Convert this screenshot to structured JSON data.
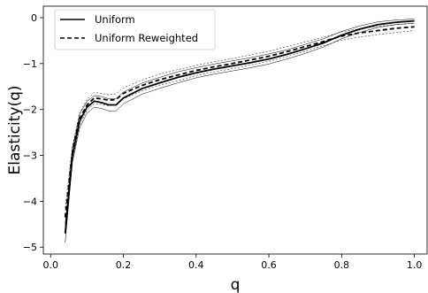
{
  "chart_data": {
    "type": "line",
    "xlabel": "q",
    "ylabel": "Elasticity(q)",
    "xlim": [
      -0.02,
      1.035
    ],
    "ylim": [
      -5.15,
      0.25
    ],
    "xticks": [
      0.0,
      0.2,
      0.4,
      0.6,
      0.8,
      1.0
    ],
    "xtick_labels": [
      "0.0",
      "0.2",
      "0.4",
      "0.6",
      "0.8",
      "1.0"
    ],
    "yticks": [
      0,
      -1,
      -2,
      -3,
      -4,
      -5
    ],
    "ytick_labels": [
      "0",
      "−1",
      "−2",
      "−3",
      "−4",
      "−5"
    ],
    "grid": false,
    "legend_position": "top-left",
    "x": [
      0.04,
      0.06,
      0.08,
      0.1,
      0.12,
      0.14,
      0.16,
      0.18,
      0.2,
      0.25,
      0.3,
      0.35,
      0.4,
      0.45,
      0.5,
      0.55,
      0.6,
      0.65,
      0.7,
      0.75,
      0.8,
      0.85,
      0.9,
      0.95,
      1.0
    ],
    "series": [
      {
        "name": "Uniform",
        "style": "solid",
        "values": [
          -4.7,
          -3.0,
          -2.25,
          -1.95,
          -1.82,
          -1.85,
          -1.9,
          -1.9,
          -1.75,
          -1.55,
          -1.42,
          -1.3,
          -1.2,
          -1.12,
          -1.05,
          -0.98,
          -0.9,
          -0.8,
          -0.68,
          -0.55,
          -0.38,
          -0.25,
          -0.15,
          -0.1,
          -0.07
        ],
        "band_upper": [
          -4.5,
          -2.85,
          -2.1,
          -1.82,
          -1.7,
          -1.72,
          -1.77,
          -1.77,
          -1.62,
          -1.43,
          -1.3,
          -1.18,
          -1.09,
          -1.01,
          -0.94,
          -0.87,
          -0.79,
          -0.7,
          -0.58,
          -0.46,
          -0.3,
          -0.18,
          -0.09,
          -0.05,
          -0.03
        ],
        "band_lower": [
          -4.9,
          -3.15,
          -2.4,
          -2.08,
          -1.95,
          -1.98,
          -2.03,
          -2.03,
          -1.88,
          -1.67,
          -1.54,
          -1.42,
          -1.31,
          -1.23,
          -1.16,
          -1.09,
          -1.01,
          -0.9,
          -0.78,
          -0.64,
          -0.46,
          -0.32,
          -0.21,
          -0.15,
          -0.12
        ]
      },
      {
        "name": "Uniform Reweighted",
        "style": "dashed",
        "values": [
          -4.35,
          -2.95,
          -2.2,
          -1.9,
          -1.75,
          -1.77,
          -1.8,
          -1.78,
          -1.65,
          -1.48,
          -1.35,
          -1.25,
          -1.15,
          -1.07,
          -1.0,
          -0.92,
          -0.84,
          -0.74,
          -0.63,
          -0.52,
          -0.4,
          -0.33,
          -0.28,
          -0.23,
          -0.2
        ],
        "band_upper": [
          -4.15,
          -2.8,
          -2.07,
          -1.78,
          -1.63,
          -1.65,
          -1.68,
          -1.66,
          -1.53,
          -1.36,
          -1.23,
          -1.13,
          -1.04,
          -0.96,
          -0.89,
          -0.81,
          -0.73,
          -0.63,
          -0.53,
          -0.43,
          -0.31,
          -0.24,
          -0.19,
          -0.15,
          -0.12
        ],
        "band_lower": [
          -4.55,
          -3.1,
          -2.33,
          -2.02,
          -1.87,
          -1.89,
          -1.92,
          -1.9,
          -1.77,
          -1.6,
          -1.47,
          -1.37,
          -1.26,
          -1.18,
          -1.11,
          -1.03,
          -0.95,
          -0.85,
          -0.73,
          -0.61,
          -0.49,
          -0.42,
          -0.37,
          -0.32,
          -0.28
        ]
      }
    ]
  }
}
